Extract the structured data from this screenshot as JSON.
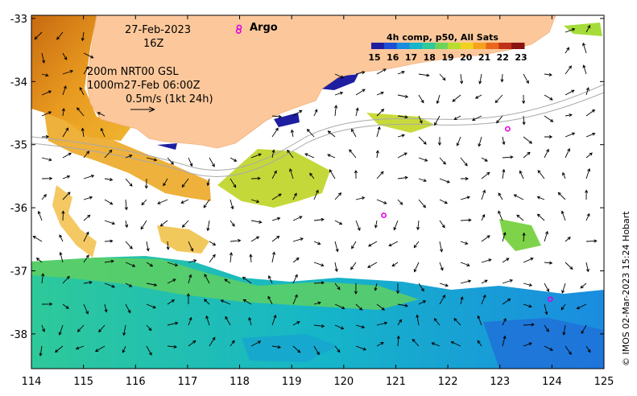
{
  "plot": {
    "date_line": "27-Feb-2023",
    "hour_line": "16Z",
    "current_info": [
      "200m  NRT00 GSL",
      "1000m27-Feb 06:00Z",
      "0.5m/s (1kt 24h)"
    ],
    "argo_label": "Argo",
    "colorbar_title": "4h comp, p50, All Sats",
    "credit": "© IMOS 02-Mar-2023 15:24 Hobart"
  },
  "axes": {
    "lon_ticks": [
      "114",
      "115",
      "116",
      "117",
      "118",
      "119",
      "120",
      "121",
      "122",
      "123",
      "124",
      "125"
    ],
    "lat_ticks": [
      "-33",
      "-34",
      "-35",
      "-36",
      "-37",
      "-38"
    ],
    "lon_range": [
      114,
      125
    ],
    "lat_range": [
      -38.55,
      -32.95
    ]
  },
  "colorbar": {
    "ticks": [
      "15",
      "16",
      "17",
      "18",
      "19",
      "20",
      "21",
      "22",
      "23"
    ],
    "colors": [
      "#1e1ea0",
      "#1f4fd6",
      "#1a8ce0",
      "#16b6c8",
      "#2ec99a",
      "#6fd35a",
      "#b7de2e",
      "#f0d21e",
      "#f5a21e",
      "#e8671c",
      "#c0311a",
      "#8a1410"
    ]
  },
  "argo_floats": [
    {
      "lon": 123.15,
      "lat": -34.75
    },
    {
      "lon": 120.77,
      "lat": -36.12
    },
    {
      "lon": 123.97,
      "lat": -37.45
    },
    {
      "lon": 117.98,
      "lat": -33.2
    }
  ],
  "colors": {
    "land": "#fcc89b",
    "argo": "#e000e0"
  }
}
